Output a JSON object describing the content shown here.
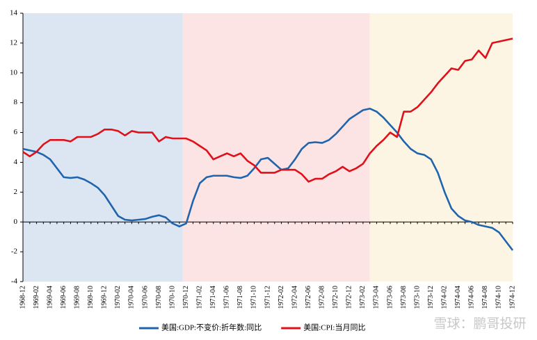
{
  "chart_data": {
    "type": "line",
    "categories": [
      "1968-12",
      null,
      "1969-02",
      null,
      "1969-04",
      null,
      "1969-06",
      null,
      "1969-08",
      null,
      "1969-10",
      null,
      "1969-12",
      null,
      "1970-02",
      null,
      "1970-04",
      null,
      "1970-06",
      null,
      "1970-08",
      null,
      "1970-10",
      null,
      "1970-12",
      null,
      "1971-02",
      null,
      "1971-04",
      null,
      "1971-06",
      null,
      "1971-08",
      null,
      "1971-10",
      null,
      "1971-12",
      null,
      "1972-02",
      null,
      "1972-04",
      null,
      "1972-06",
      null,
      "1972-08",
      null,
      "1972-10",
      null,
      "1972-12",
      null,
      "1973-02",
      null,
      "1973-04",
      null,
      "1973-06",
      null,
      "1973-08",
      null,
      "1973-10",
      null,
      "1973-12",
      null,
      "1974-02",
      null,
      "1974-04",
      null,
      "1974-06",
      null,
      "1974-08",
      null,
      "1974-10",
      null,
      "1974-12"
    ],
    "series": [
      {
        "name": "美国:GDP:不变价:折年数:同比",
        "color": "#1f64ad",
        "values": [
          4.9,
          4.8,
          4.7,
          4.5,
          4.2,
          3.6,
          3.0,
          2.95,
          3.0,
          2.85,
          2.6,
          2.3,
          1.8,
          1.1,
          0.4,
          0.15,
          0.1,
          0.15,
          0.2,
          0.35,
          0.45,
          0.3,
          -0.1,
          -0.3,
          -0.1,
          1.4,
          2.6,
          3.0,
          3.1,
          3.1,
          3.1,
          3.0,
          2.95,
          3.1,
          3.6,
          4.2,
          4.3,
          3.9,
          3.5,
          3.6,
          4.2,
          4.9,
          5.3,
          5.35,
          5.3,
          5.5,
          5.9,
          6.4,
          6.9,
          7.2,
          7.5,
          7.6,
          7.4,
          7.0,
          6.5,
          6.0,
          5.4,
          4.9,
          4.6,
          4.5,
          4.2,
          3.3,
          2.0,
          0.9,
          0.4,
          0.1,
          0.0,
          -0.2,
          -0.3,
          -0.4,
          -0.7,
          -1.3,
          -1.9
        ]
      },
      {
        "name": "美国:CPI:当月同比",
        "color": "#e0101a",
        "values": [
          4.7,
          4.4,
          4.7,
          5.2,
          5.5,
          5.5,
          5.5,
          5.4,
          5.7,
          5.7,
          5.7,
          5.9,
          6.2,
          6.2,
          6.1,
          5.8,
          6.1,
          6.0,
          6.0,
          6.0,
          5.4,
          5.7,
          5.6,
          5.6,
          5.6,
          5.4,
          5.1,
          4.8,
          4.2,
          4.4,
          4.6,
          4.4,
          4.6,
          4.1,
          3.8,
          3.3,
          3.3,
          3.3,
          3.5,
          3.5,
          3.5,
          3.2,
          2.7,
          2.9,
          2.9,
          3.2,
          3.4,
          3.7,
          3.4,
          3.6,
          3.9,
          4.6,
          5.1,
          5.5,
          6.0,
          5.7,
          7.4,
          7.4,
          7.7,
          8.2,
          8.7,
          9.3,
          9.8,
          10.3,
          10.2,
          10.8,
          10.9,
          11.5,
          11.0,
          12.0,
          12.1,
          12.2,
          12.3
        ]
      }
    ],
    "ylim": [
      -4,
      14
    ],
    "yticks": [
      -4,
      -2,
      0,
      2,
      4,
      6,
      8,
      10,
      12,
      14
    ],
    "grid": false,
    "legend": "bottom",
    "watermark": "雪球：鹏哥投研"
  }
}
